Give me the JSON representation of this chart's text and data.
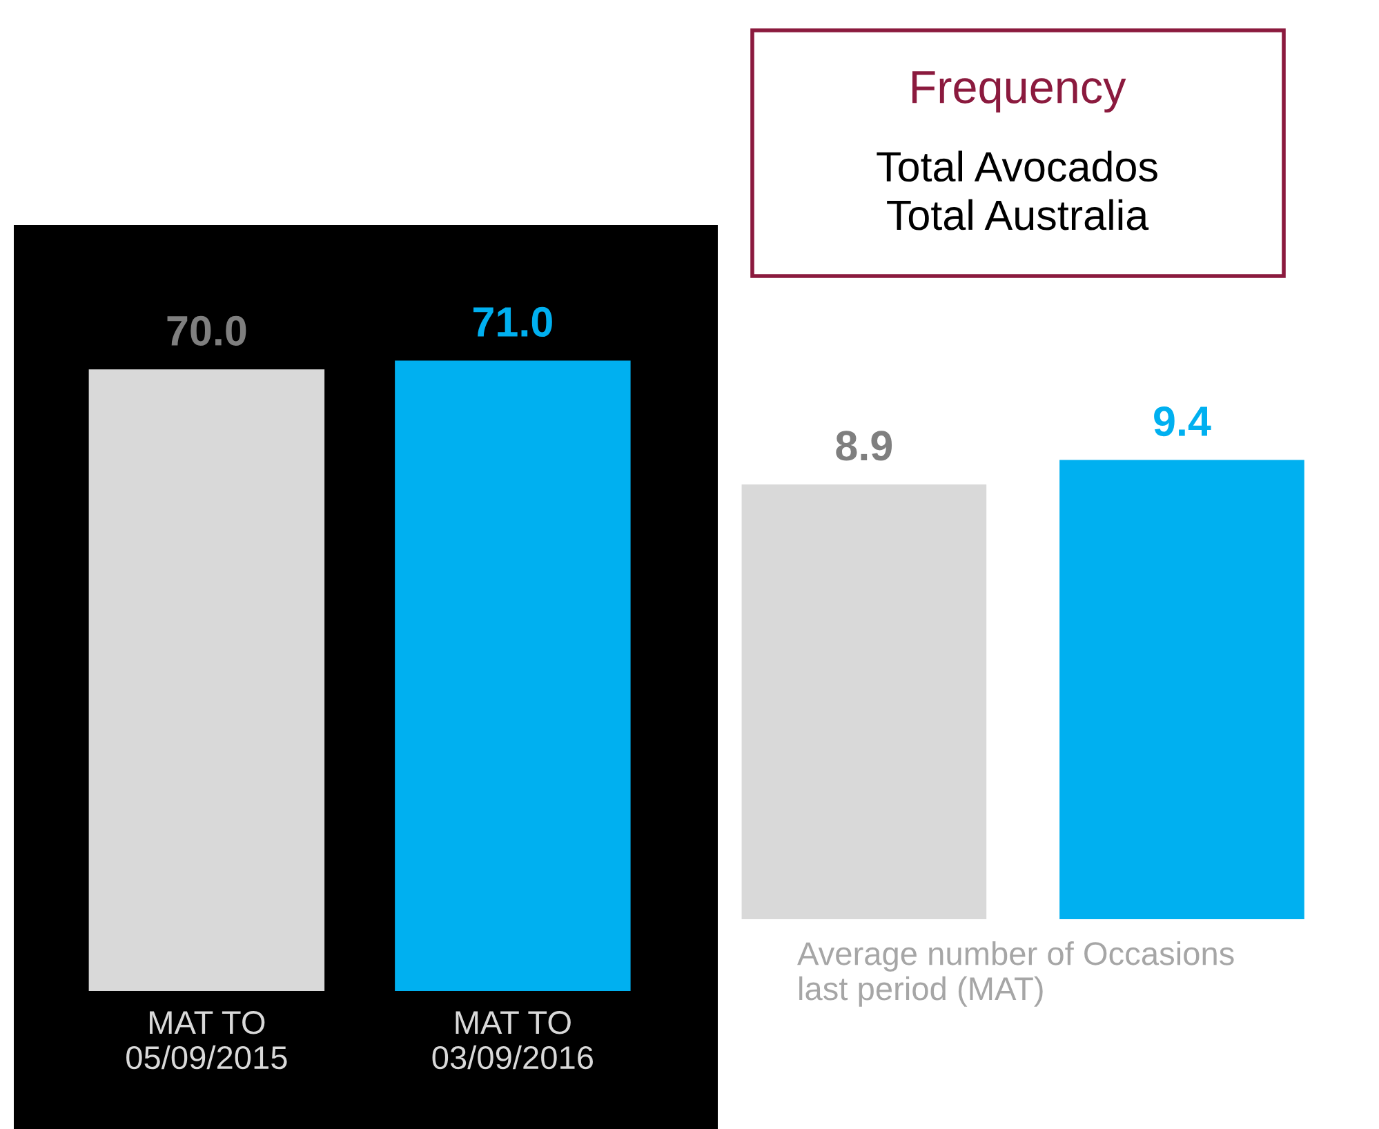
{
  "chart_data": [
    {
      "type": "bar",
      "categories": [
        "MAT TO\n05/09/2015",
        "MAT TO\n03/09/2016"
      ],
      "values": [
        70.0,
        71.0
      ],
      "colors": [
        "#d9d9d9",
        "#00b0f0"
      ],
      "value_labels": [
        "70.0",
        "71.0"
      ]
    },
    {
      "type": "bar",
      "title": "Frequency",
      "subtitle": "Total Avocados\nTotal Australia",
      "xlabel": "Average number of Occasions\nlast period (MAT)",
      "categories": [
        null,
        null
      ],
      "values": [
        8.9,
        9.4
      ],
      "colors": [
        "#d9d9d9",
        "#00b0f0"
      ],
      "value_labels": [
        "8.9",
        "9.4"
      ]
    }
  ]
}
